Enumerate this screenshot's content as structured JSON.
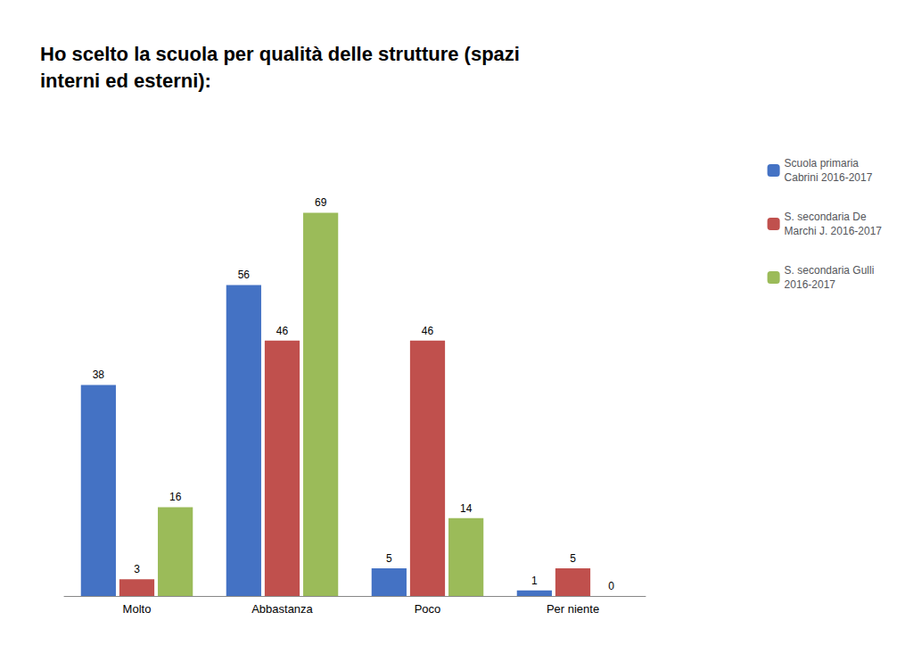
{
  "chart_data": {
    "type": "bar",
    "title": "Ho scelto la scuola per qualità delle strutture (spazi\ninterni ed esterni):",
    "categories": [
      "Molto",
      "Abbastanza",
      "Poco",
      "Per niente"
    ],
    "series": [
      {
        "name": "Scuola primaria\nCabrini 2016-2017",
        "color": "#4472C4",
        "values": [
          38,
          56,
          5,
          1
        ]
      },
      {
        "name": "S. secondaria De\nMarchi J. 2016-2017",
        "color": "#C0504D",
        "values": [
          3,
          46,
          46,
          5
        ]
      },
      {
        "name": "S. secondaria Gulli\n2016-2017",
        "color": "#9BBB59",
        "values": [
          16,
          69,
          14,
          0
        ]
      }
    ],
    "ylim": [
      0,
      80
    ],
    "grid": false,
    "legend": "upper right",
    "data_labels": true,
    "tick_labels": "x"
  }
}
